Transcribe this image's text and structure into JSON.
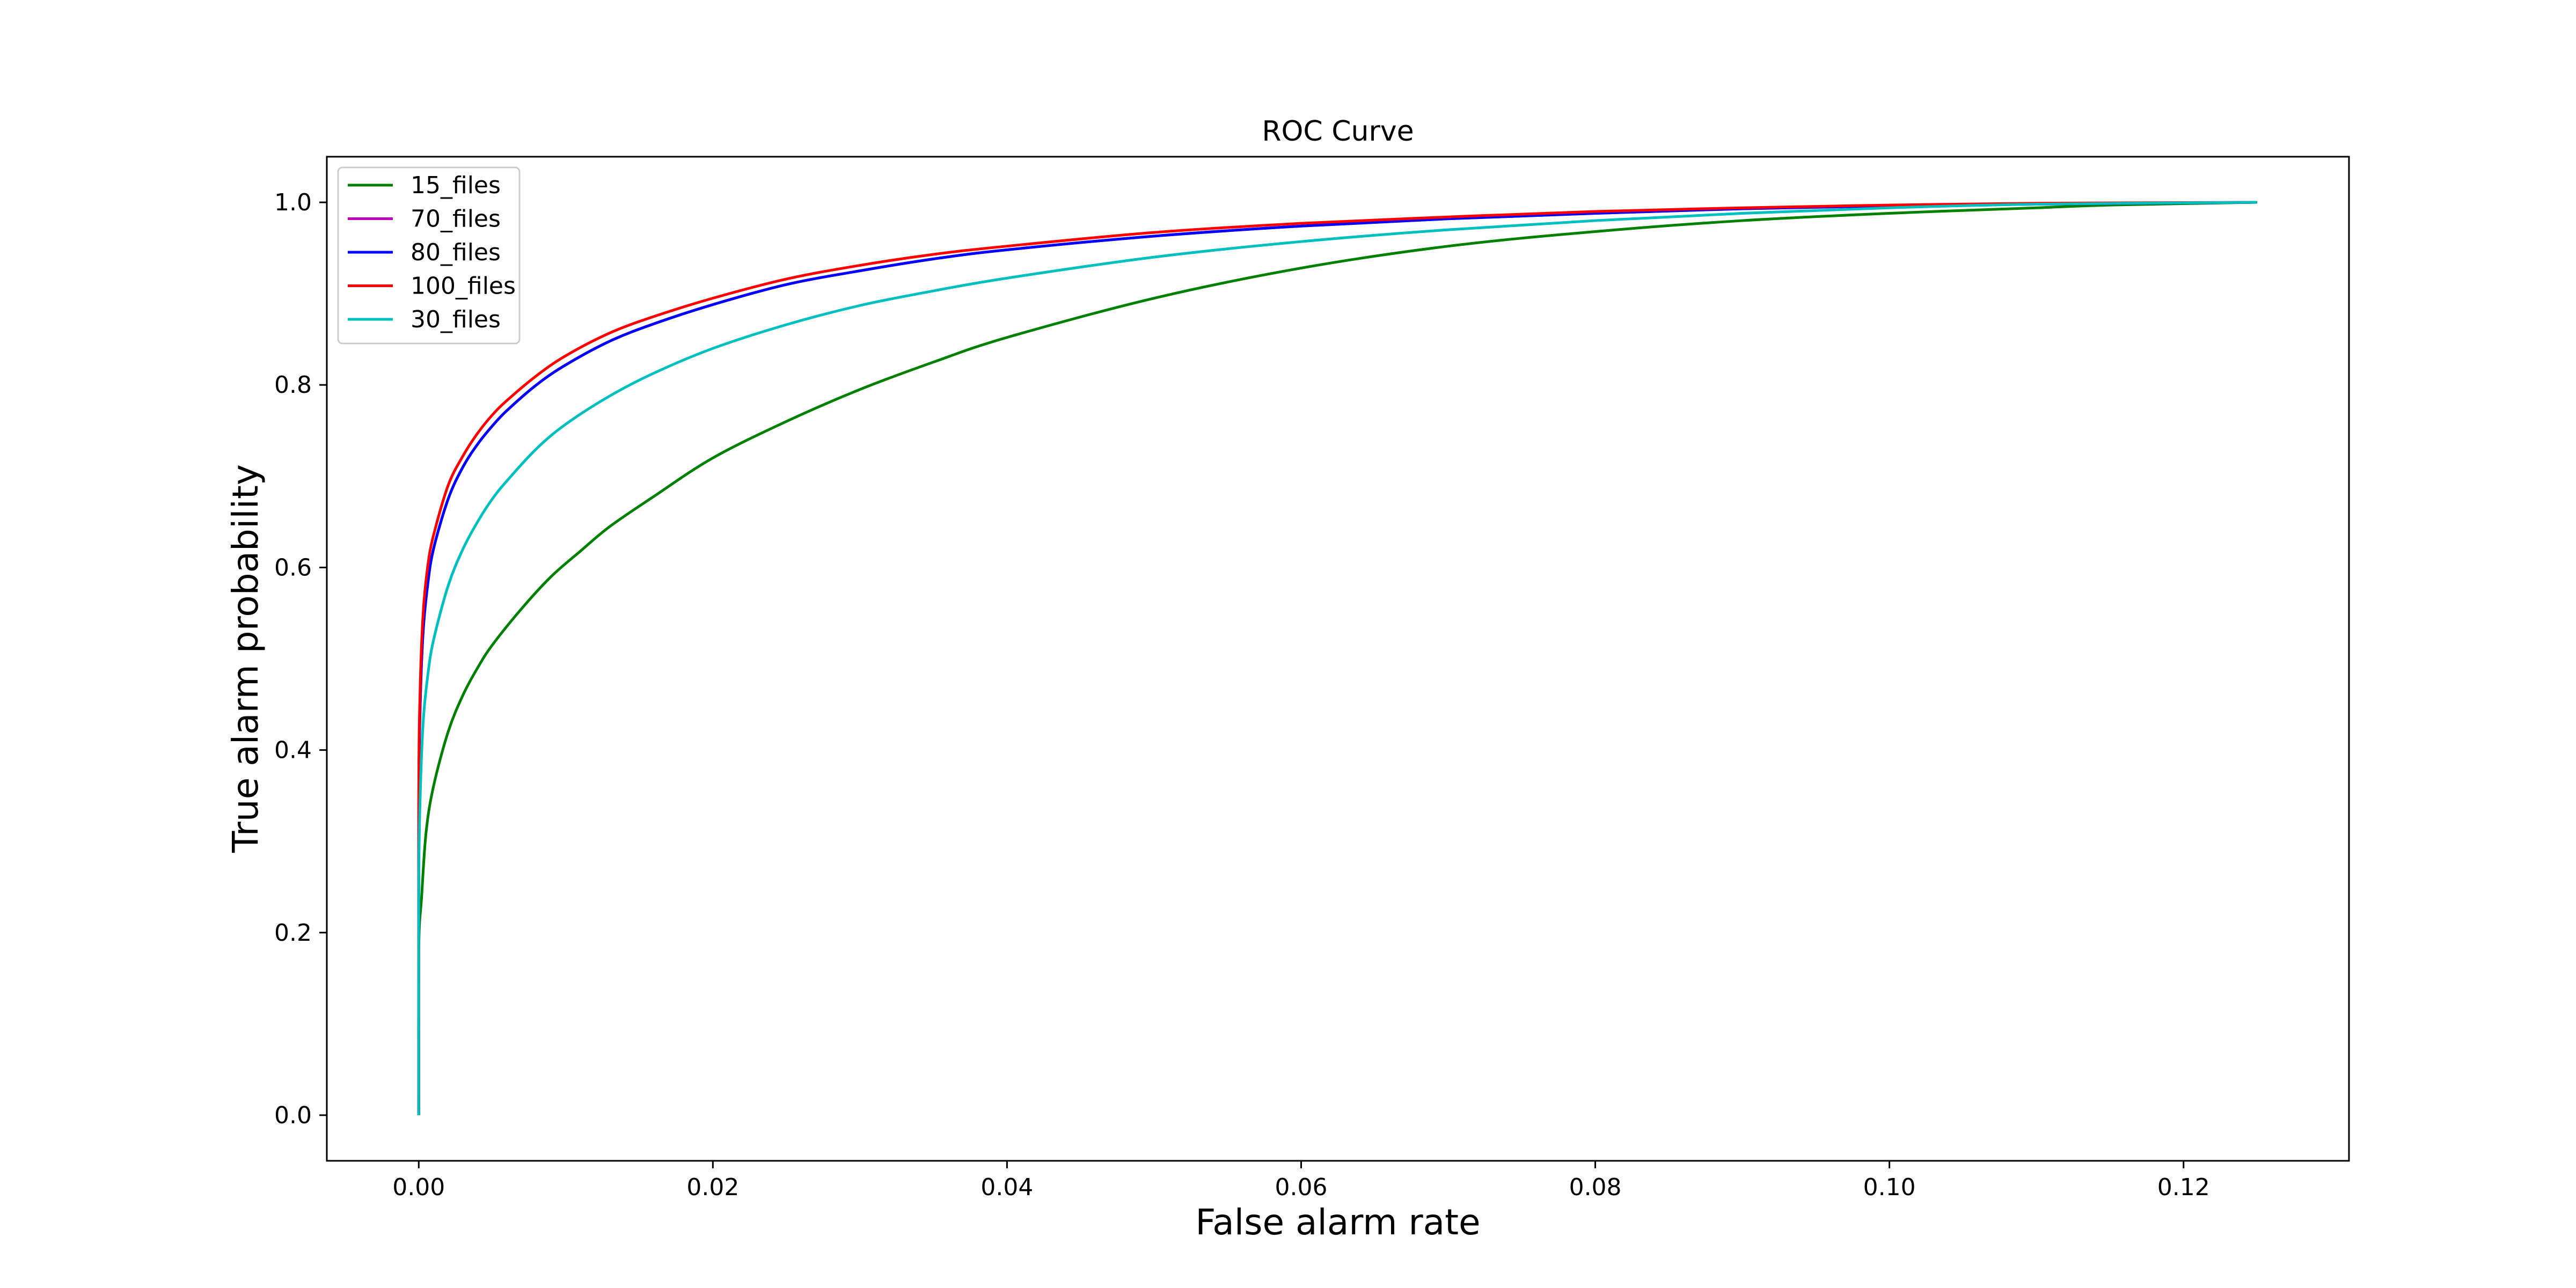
{
  "chart_data": {
    "type": "line",
    "title": "ROC Curve",
    "xlabel": "False alarm rate",
    "ylabel": "True alarm probability",
    "xlim": [
      -0.00625,
      0.13125
    ],
    "ylim": [
      -0.05,
      1.05
    ],
    "xticks": [
      0.0,
      0.02,
      0.04,
      0.06,
      0.08,
      0.1,
      0.12
    ],
    "xtick_labels": [
      "0.00",
      "0.02",
      "0.04",
      "0.06",
      "0.08",
      "0.10",
      "0.12"
    ],
    "yticks": [
      0.0,
      0.2,
      0.4,
      0.6,
      0.8,
      1.0
    ],
    "ytick_labels": [
      "0.0",
      "0.2",
      "0.4",
      "0.6",
      "0.8",
      "1.0"
    ],
    "grid": false,
    "legend_position": "top-left",
    "series": [
      {
        "name": "15_files",
        "color": "#008000",
        "x": [
          0,
          0,
          0.0002,
          0.0005,
          0.001,
          0.002,
          0.003,
          0.004,
          0.005,
          0.007,
          0.009,
          0.011,
          0.013,
          0.016,
          0.02,
          0.025,
          0.03,
          0.035,
          0.04,
          0.05,
          0.06,
          0.07,
          0.08,
          0.09,
          0.1,
          0.11,
          0.115,
          0.125
        ],
        "y": [
          0,
          0.18,
          0.24,
          0.31,
          0.36,
          0.42,
          0.46,
          0.49,
          0.515,
          0.555,
          0.59,
          0.618,
          0.645,
          0.678,
          0.72,
          0.76,
          0.795,
          0.825,
          0.852,
          0.895,
          0.928,
          0.952,
          0.968,
          0.98,
          0.988,
          0.994,
          0.997,
          1.0
        ]
      },
      {
        "name": "70_files",
        "color": "#bf00bf",
        "x": [
          0,
          0,
          0.0001,
          0.0003,
          0.0006,
          0.001,
          0.002,
          0.003,
          0.004,
          0.005,
          0.006,
          0.008,
          0.01,
          0.013,
          0.016,
          0.02,
          0.025,
          0.03,
          0.035,
          0.04,
          0.05,
          0.06,
          0.07,
          0.08,
          0.09,
          0.1,
          0.11,
          0.125
        ],
        "y": [
          0,
          0.33,
          0.45,
          0.53,
          0.58,
          0.62,
          0.675,
          0.71,
          0.735,
          0.755,
          0.772,
          0.8,
          0.822,
          0.848,
          0.867,
          0.888,
          0.91,
          0.925,
          0.938,
          0.948,
          0.963,
          0.974,
          0.982,
          0.988,
          0.993,
          0.996,
          0.998,
          1.0
        ]
      },
      {
        "name": "80_files",
        "color": "#0000ff",
        "x": [
          0,
          0,
          0.0001,
          0.0003,
          0.0006,
          0.001,
          0.002,
          0.003,
          0.004,
          0.005,
          0.006,
          0.008,
          0.01,
          0.013,
          0.016,
          0.02,
          0.025,
          0.03,
          0.035,
          0.04,
          0.05,
          0.06,
          0.07,
          0.08,
          0.09,
          0.1,
          0.11,
          0.125
        ],
        "y": [
          0,
          0.33,
          0.45,
          0.53,
          0.58,
          0.62,
          0.675,
          0.71,
          0.735,
          0.755,
          0.772,
          0.8,
          0.822,
          0.848,
          0.867,
          0.888,
          0.91,
          0.925,
          0.938,
          0.948,
          0.963,
          0.974,
          0.982,
          0.988,
          0.993,
          0.996,
          0.998,
          1.0
        ]
      },
      {
        "name": "100_files",
        "color": "#ff0000",
        "x": [
          0,
          0,
          0.0001,
          0.0003,
          0.0006,
          0.001,
          0.002,
          0.003,
          0.004,
          0.005,
          0.006,
          0.008,
          0.01,
          0.013,
          0.016,
          0.02,
          0.025,
          0.03,
          0.035,
          0.04,
          0.05,
          0.06,
          0.07,
          0.08,
          0.09,
          0.1,
          0.11,
          0.125
        ],
        "y": [
          0,
          0.35,
          0.47,
          0.55,
          0.6,
          0.635,
          0.69,
          0.722,
          0.747,
          0.767,
          0.783,
          0.81,
          0.832,
          0.857,
          0.875,
          0.895,
          0.916,
          0.931,
          0.943,
          0.952,
          0.967,
          0.977,
          0.984,
          0.99,
          0.994,
          0.997,
          0.999,
          1.0
        ]
      },
      {
        "name": "30_files",
        "color": "#00bfbf",
        "x": [
          0,
          0,
          0.0001,
          0.0003,
          0.0006,
          0.001,
          0.002,
          0.003,
          0.004,
          0.005,
          0.006,
          0.008,
          0.01,
          0.013,
          0.016,
          0.02,
          0.025,
          0.03,
          0.035,
          0.04,
          0.05,
          0.06,
          0.07,
          0.08,
          0.09,
          0.1,
          0.11,
          0.125
        ],
        "y": [
          0,
          0.25,
          0.35,
          0.43,
          0.48,
          0.52,
          0.58,
          0.62,
          0.65,
          0.675,
          0.695,
          0.73,
          0.757,
          0.788,
          0.813,
          0.84,
          0.866,
          0.887,
          0.903,
          0.917,
          0.94,
          0.957,
          0.97,
          0.98,
          0.988,
          0.994,
          0.998,
          1.0
        ]
      }
    ]
  }
}
